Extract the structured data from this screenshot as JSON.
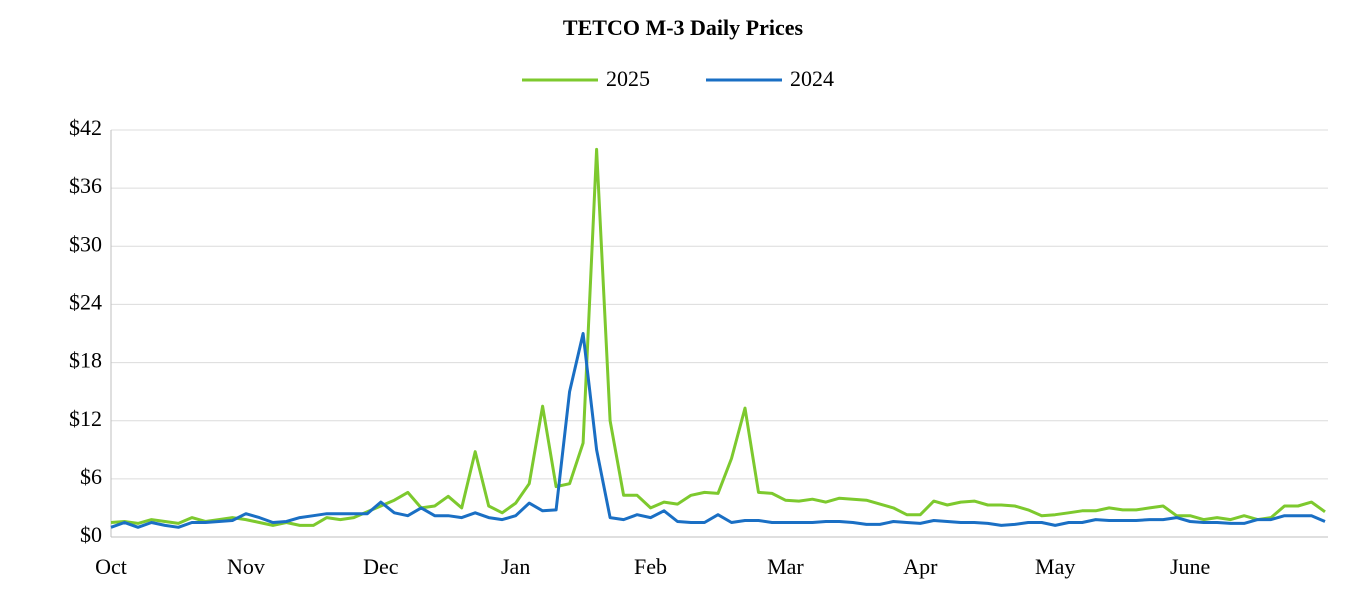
{
  "chart_data": {
    "type": "line",
    "title": "TETCO M-3 Daily Prices",
    "categories": [
      "Oct",
      null,
      null,
      null,
      null,
      null,
      null,
      null,
      null,
      null,
      "Nov",
      null,
      null,
      null,
      null,
      null,
      null,
      null,
      null,
      null,
      "Dec",
      null,
      null,
      null,
      null,
      null,
      null,
      null,
      null,
      null,
      "Jan",
      null,
      null,
      null,
      null,
      null,
      null,
      null,
      null,
      null,
      "Feb",
      null,
      null,
      null,
      null,
      null,
      null,
      null,
      null,
      null,
      "Mar",
      null,
      null,
      null,
      null,
      null,
      null,
      null,
      null,
      null,
      "Apr",
      null,
      null,
      null,
      null,
      null,
      null,
      null,
      null,
      null,
      "May",
      null,
      null,
      null,
      null,
      null,
      null,
      null,
      null,
      null,
      "June",
      null,
      null,
      null,
      null,
      null,
      null,
      null,
      null,
      null,
      null
    ],
    "series": [
      {
        "name": "2025",
        "color": "#7dc92e",
        "values": [
          1.5,
          1.6,
          1.4,
          1.8,
          1.6,
          1.4,
          2.0,
          1.6,
          1.8,
          2.0,
          1.8,
          1.5,
          1.2,
          1.5,
          1.2,
          1.2,
          2.0,
          1.8,
          2.0,
          2.6,
          3.2,
          3.8,
          4.6,
          3.0,
          3.2,
          4.2,
          3.0,
          8.8,
          3.2,
          2.5,
          3.5,
          5.5,
          13.5,
          5.2,
          5.5,
          9.7,
          40,
          12,
          4.3,
          4.3,
          3.0,
          3.6,
          3.4,
          4.3,
          4.6,
          4.5,
          8.1,
          13.3,
          4.6,
          4.5,
          3.8,
          3.7,
          3.9,
          3.6,
          4.0,
          3.9,
          3.8,
          3.4,
          3.0,
          2.3,
          2.3,
          3.7,
          3.3,
          3.6,
          3.7,
          3.3,
          3.3,
          3.2,
          2.8,
          2.2,
          2.3,
          2.5,
          2.7,
          2.7,
          3.0,
          2.8,
          2.8,
          3.0,
          3.2,
          2.2,
          2.2,
          1.8,
          2.0,
          1.8,
          2.2,
          1.8,
          2.0,
          3.2,
          3.2,
          3.6,
          2.6
        ]
      },
      {
        "name": "2024",
        "color": "#1a6fc4",
        "values": [
          1.0,
          1.5,
          1.0,
          1.5,
          1.2,
          1.0,
          1.5,
          1.5,
          1.6,
          1.7,
          2.4,
          2.0,
          1.5,
          1.6,
          2.0,
          2.2,
          2.4,
          2.4,
          2.4,
          2.4,
          3.6,
          2.5,
          2.2,
          3.0,
          2.2,
          2.2,
          2.0,
          2.5,
          2.0,
          1.8,
          2.2,
          3.5,
          2.7,
          2.8,
          15,
          21,
          9,
          2.0,
          1.8,
          2.3,
          2.0,
          2.7,
          1.6,
          1.5,
          1.5,
          2.3,
          1.5,
          1.7,
          1.7,
          1.5,
          1.5,
          1.5,
          1.5,
          1.6,
          1.6,
          1.5,
          1.3,
          1.3,
          1.6,
          1.5,
          1.4,
          1.7,
          1.6,
          1.5,
          1.5,
          1.4,
          1.2,
          1.3,
          1.5,
          1.5,
          1.2,
          1.5,
          1.5,
          1.8,
          1.7,
          1.7,
          1.7,
          1.8,
          1.8,
          2.0,
          1.6,
          1.5,
          1.5,
          1.4,
          1.4,
          1.8,
          1.8,
          2.2,
          2.2,
          2.2,
          1.6
        ]
      }
    ],
    "ylim": [
      0,
      42
    ],
    "yticks": [
      {
        "value": 0,
        "label": "$0"
      },
      {
        "value": 6,
        "label": "$6"
      },
      {
        "value": 12,
        "label": "$12"
      },
      {
        "value": 18,
        "label": "$18"
      },
      {
        "value": 24,
        "label": "$24"
      },
      {
        "value": 30,
        "label": "$30"
      },
      {
        "value": 36,
        "label": "$36"
      },
      {
        "value": 42,
        "label": "$42"
      }
    ],
    "grid": true,
    "legend": "top"
  }
}
